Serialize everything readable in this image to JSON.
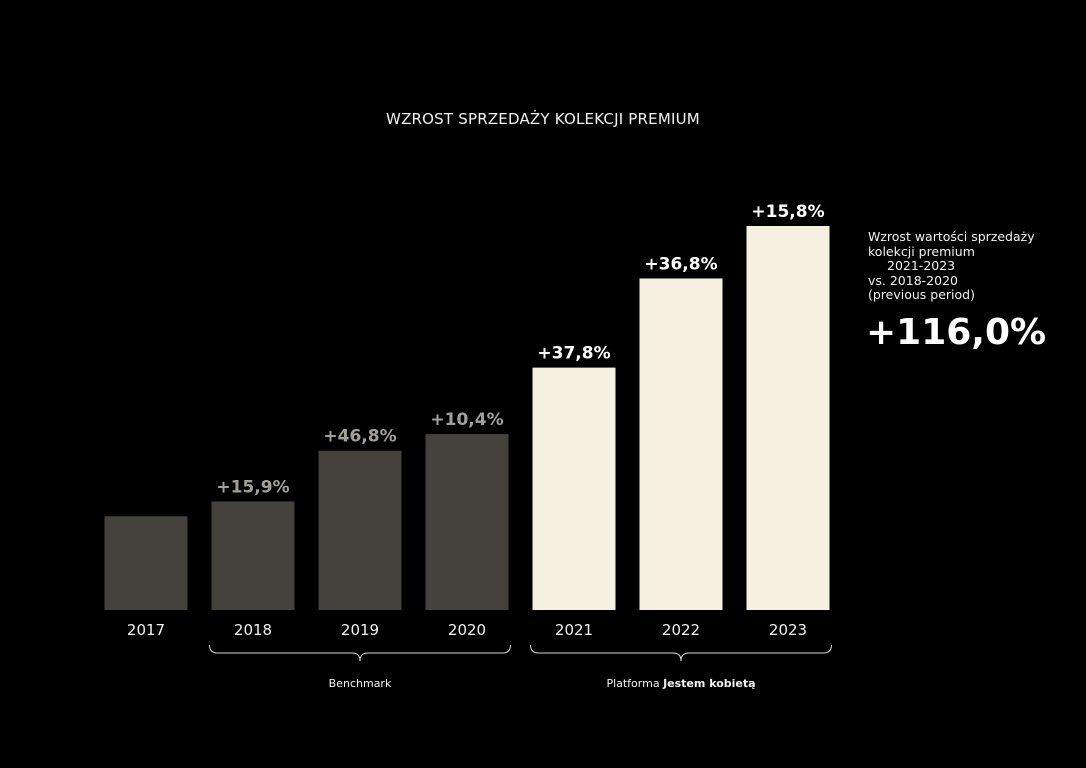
{
  "chart_data": {
    "type": "bar",
    "title": "WZROST SPRZEDAŻY KOLEKCJI PREMIUM",
    "categories": [
      "2017",
      "2018",
      "2019",
      "2020",
      "2021",
      "2022",
      "2023"
    ],
    "values": [
      100,
      115.9,
      170.1,
      187.8,
      258.8,
      354.0,
      410.0
    ],
    "value_labels": [
      "",
      "+15,9%",
      "+46,8%",
      "+10,4%",
      "+37,8%",
      "+36,8%",
      "+15,8%"
    ],
    "groups": [
      {
        "label_prefix": "",
        "label_bold": "Benchmark",
        "from": "2018",
        "to": "2020"
      },
      {
        "label_prefix": "Platforma ",
        "label_bold": "Jestem kobietą",
        "from": "2021",
        "to": "2023"
      }
    ],
    "ylim": [
      0,
      410
    ],
    "grid": false,
    "colors": {
      "benchmark_bar": "#45423d",
      "platform_bar": "#f6f0e1",
      "benchmark_label": "#a3a09a",
      "platform_label": "#ffffff",
      "background": "#000000"
    }
  },
  "side_note": {
    "line1": "Wzrost wartości sprzedaży",
    "line2": "kolekcji premium",
    "line3": "2021-2023",
    "line4": "vs. 2018-2020",
    "line5": "(previous period)",
    "value": "+116,0%"
  }
}
